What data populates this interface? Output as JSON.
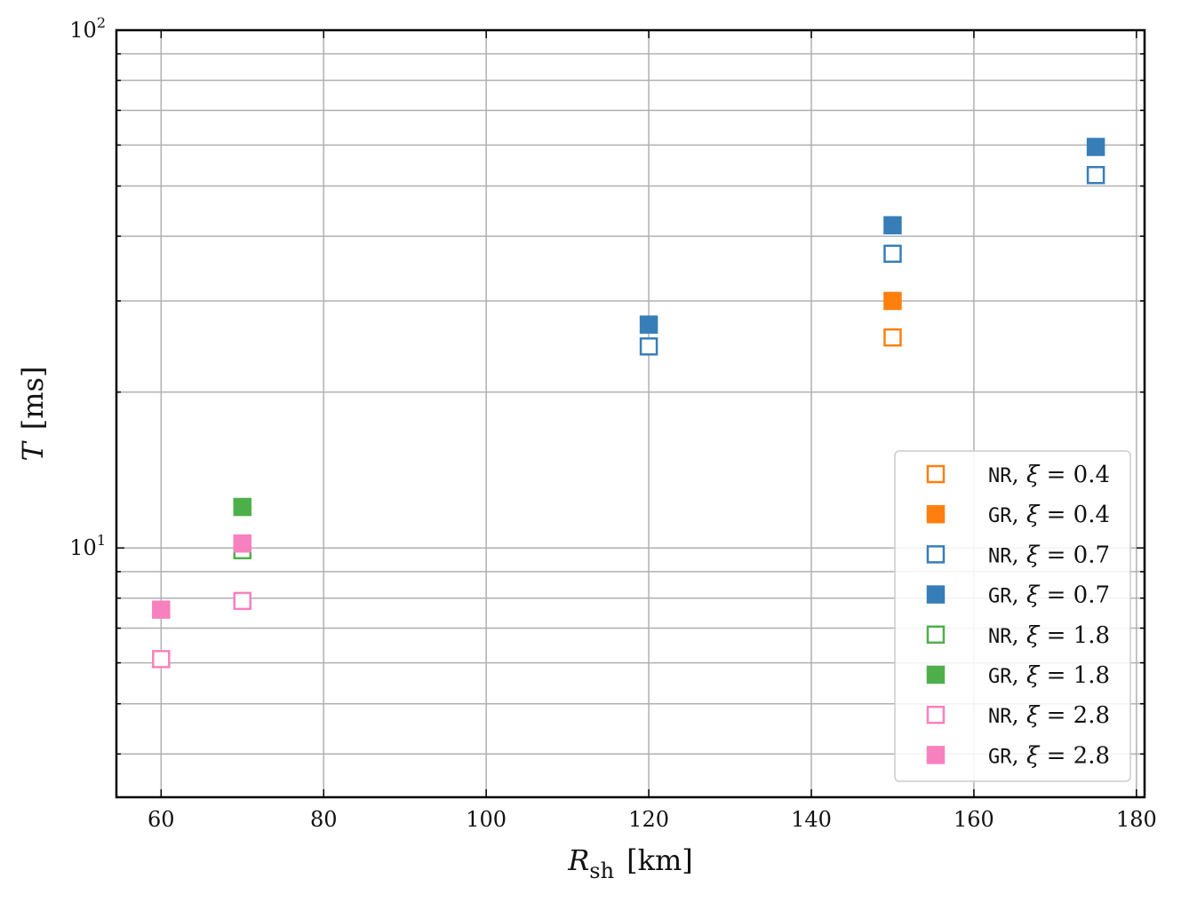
{
  "chart_data": {
    "type": "scatter",
    "xlabel": {
      "main": "R",
      "sub": "sh",
      "unit": "[km]"
    },
    "ylabel": {
      "main": "T",
      "unit": "[ms]"
    },
    "xlim": [
      54.5,
      181
    ],
    "ylim": [
      3.3,
      100
    ],
    "yscale": "log",
    "grid": true,
    "legend_position": "lower right",
    "x_ticks": [
      60,
      80,
      100,
      120,
      140,
      160,
      180
    ],
    "x_tick_labels": [
      "60",
      "80",
      "100",
      "120",
      "140",
      "160",
      "180"
    ],
    "y_ticks": [
      {
        "value": 10,
        "base": "10",
        "exp": "1"
      },
      {
        "value": 100,
        "base": "10",
        "exp": "2"
      }
    ],
    "series": [
      {
        "name": "NR, ξ = 0.4",
        "model": "NR",
        "xi": "0.4",
        "color": "#ff7f0e",
        "filled": false,
        "points": [
          [
            150,
            25.5
          ]
        ]
      },
      {
        "name": "GR, ξ = 0.4",
        "model": "GR",
        "xi": "0.4",
        "color": "#ff7f0e",
        "filled": true,
        "points": [
          [
            150,
            30.0
          ]
        ]
      },
      {
        "name": "NR, ξ = 0.7",
        "model": "NR",
        "xi": "0.7",
        "color": "#377eb8",
        "filled": false,
        "points": [
          [
            120,
            24.5
          ],
          [
            150,
            37.0
          ],
          [
            175,
            52.5
          ]
        ]
      },
      {
        "name": "GR, ξ = 0.7",
        "model": "GR",
        "xi": "0.7",
        "color": "#377eb8",
        "filled": true,
        "points": [
          [
            120,
            27.0
          ],
          [
            150,
            42.0
          ],
          [
            175,
            59.5
          ]
        ]
      },
      {
        "name": "NR, ξ = 1.8",
        "model": "NR",
        "xi": "1.8",
        "color": "#4daf4a",
        "filled": false,
        "points": [
          [
            70,
            9.9
          ]
        ]
      },
      {
        "name": "GR, ξ = 1.8",
        "model": "GR",
        "xi": "1.8",
        "color": "#4daf4a",
        "filled": true,
        "points": [
          [
            70,
            12.0
          ]
        ]
      },
      {
        "name": "NR, ξ = 2.8",
        "model": "NR",
        "xi": "2.8",
        "color": "#f781bf",
        "filled": false,
        "points": [
          [
            60,
            6.1
          ],
          [
            70,
            7.9
          ]
        ]
      },
      {
        "name": "GR, ξ = 2.8",
        "model": "GR",
        "xi": "2.8",
        "color": "#f781bf",
        "filled": true,
        "points": [
          [
            60,
            7.6
          ],
          [
            70,
            10.2
          ]
        ]
      }
    ]
  }
}
